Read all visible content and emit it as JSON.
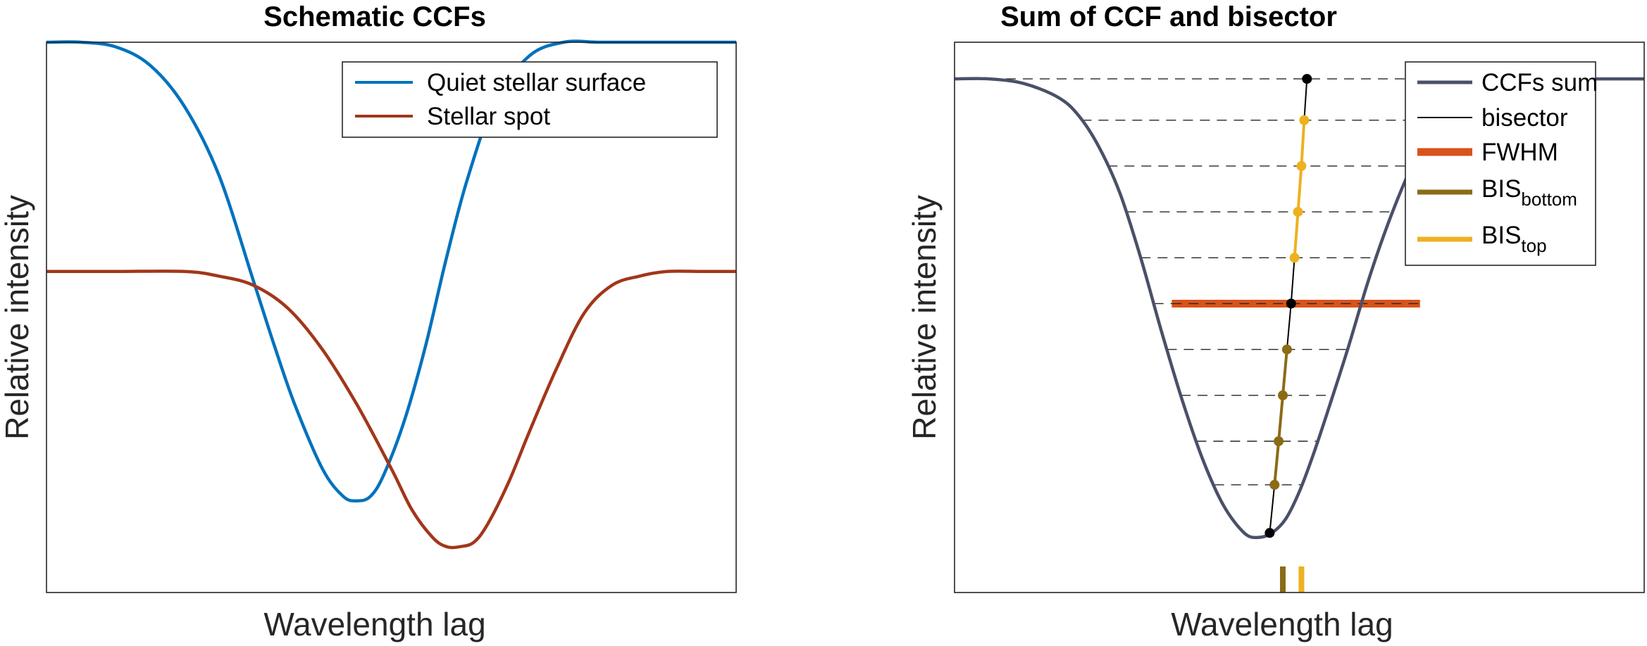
{
  "chart_data": [
    {
      "type": "line",
      "title": "Schematic CCFs",
      "xlabel": "Wavelength lag",
      "ylabel": "Relative intensity",
      "xlim": [
        0,
        100
      ],
      "ylim": [
        0,
        1.2
      ],
      "grid": false,
      "legend_position": "top-right",
      "series": [
        {
          "name": "Quiet stellar surface",
          "color": "#0072bd",
          "x": [
            0,
            5,
            10,
            15,
            20,
            25,
            30,
            33,
            36,
            40,
            43,
            45,
            47,
            49,
            52,
            55,
            58,
            61,
            65,
            70,
            75,
            80,
            85,
            90,
            95,
            100
          ],
          "y": [
            1.2,
            1.2,
            1.19,
            1.15,
            1.06,
            0.91,
            0.68,
            0.54,
            0.41,
            0.27,
            0.21,
            0.2,
            0.21,
            0.26,
            0.38,
            0.54,
            0.73,
            0.9,
            1.07,
            1.17,
            1.2,
            1.2,
            1.2,
            1.2,
            1.2,
            1.2
          ]
        },
        {
          "name": "Stellar spot",
          "color": "#a2361a",
          "x": [
            0,
            10,
            20,
            25,
            30,
            35,
            40,
            45,
            50,
            53,
            56,
            58,
            60,
            62,
            64,
            67,
            70,
            74,
            78,
            82,
            86,
            90,
            95,
            100
          ],
          "y": [
            0.7,
            0.7,
            0.7,
            0.69,
            0.67,
            0.62,
            0.53,
            0.41,
            0.27,
            0.18,
            0.12,
            0.1,
            0.1,
            0.11,
            0.15,
            0.24,
            0.35,
            0.49,
            0.61,
            0.67,
            0.69,
            0.7,
            0.7,
            0.7
          ]
        }
      ]
    },
    {
      "type": "line",
      "title": "Sum of CCF and bisector",
      "xlabel": "Wavelength lag",
      "ylabel": "Relative intensity",
      "xlim": [
        0,
        100
      ],
      "ylim": [
        0,
        1.2
      ],
      "grid": false,
      "legend_position": "top-right",
      "series": [
        {
          "name": "CCFs sum",
          "color": "#4a5068",
          "x": [
            0,
            5,
            10,
            15,
            18,
            21,
            24,
            27,
            30,
            33,
            36,
            39,
            42,
            44,
            46,
            48,
            50,
            52,
            54,
            57,
            60,
            63,
            66,
            69,
            72,
            75,
            78,
            81,
            84,
            87,
            90,
            95,
            100
          ],
          "y": [
            1.12,
            1.12,
            1.11,
            1.08,
            1.04,
            0.97,
            0.87,
            0.73,
            0.57,
            0.42,
            0.29,
            0.19,
            0.13,
            0.12,
            0.13,
            0.16,
            0.22,
            0.3,
            0.39,
            0.53,
            0.68,
            0.81,
            0.92,
            1.01,
            1.07,
            1.1,
            1.11,
            1.12,
            1.12,
            1.12,
            1.12,
            1.12,
            1.12
          ]
        },
        {
          "name": "bisector",
          "color": "#000000",
          "x": [
            45.7,
            46.4,
            47.0,
            47.6,
            48.2,
            48.8,
            49.3,
            49.8,
            50.3,
            50.7,
            51.1
          ],
          "y": [
            0.13,
            0.235,
            0.33,
            0.43,
            0.53,
            0.63,
            0.73,
            0.83,
            0.93,
            1.03,
            1.12
          ]
        }
      ],
      "fwhm": {
        "name": "FWHM",
        "color": "#d95319",
        "y": 0.63,
        "x_start": 31.5,
        "x_end": 67.5
      },
      "bis_bottom": {
        "name": "BIS",
        "subscript": "bottom",
        "color": "#8c6b16",
        "mean_x": 47.6
      },
      "bis_top": {
        "name": "BIS",
        "subscript": "top",
        "color": "#edb120",
        "mean_x": 50.3
      },
      "level_lines": [
        0.235,
        0.33,
        0.43,
        0.53,
        0.63,
        0.73,
        0.83,
        0.93,
        1.03,
        1.12
      ]
    }
  ]
}
